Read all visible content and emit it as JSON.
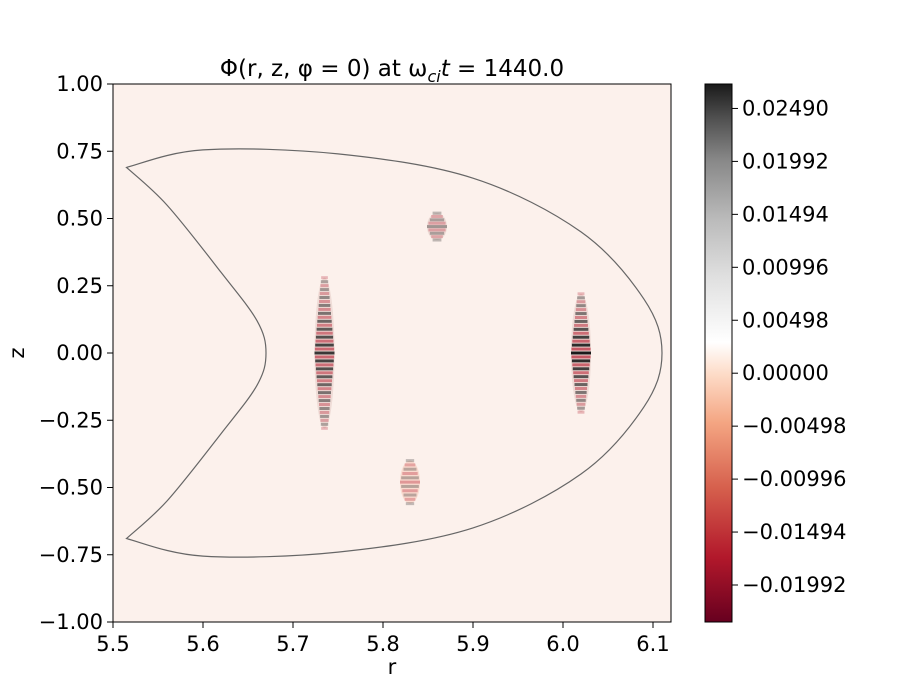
{
  "chart_data": {
    "type": "heatmap",
    "title": "Φ(r, z, φ = 0) at ω",
    "title_sub": "ci",
    "title_var": "t",
    "title_rest": " = 1440.0",
    "xlabel": "r",
    "ylabel": "z",
    "xlim": [
      5.5,
      6.12
    ],
    "ylim": [
      -1.0,
      1.0
    ],
    "x_ticks": [
      5.5,
      5.6,
      5.7,
      5.8,
      5.9,
      6.0,
      6.1
    ],
    "x_tick_labels": [
      "5.5",
      "5.6",
      "5.7",
      "5.8",
      "5.9",
      "6.0",
      "6.1"
    ],
    "y_ticks": [
      1.0,
      0.75,
      0.5,
      0.25,
      0.0,
      -0.25,
      -0.5,
      -0.75,
      -1.0
    ],
    "y_tick_labels": [
      "1.00",
      "0.75",
      "0.50",
      "0.25",
      "0.00",
      "−0.25",
      "−0.50",
      "−0.75",
      "−1.00"
    ],
    "colormap": "RdGy",
    "colorbar": {
      "vmin": -0.0234,
      "vmax": 0.0272,
      "ticks": [
        0.0249,
        0.01992,
        0.01494,
        0.00996,
        0.00498,
        0.0,
        -0.00498,
        -0.00996,
        -0.01494,
        -0.01992
      ],
      "tick_labels": [
        "0.02490",
        "0.01992",
        "0.01494",
        "0.00996",
        "0.00498",
        "0.00000",
        "−0.00498",
        "−0.00996",
        "−0.01494",
        "−0.01992"
      ]
    },
    "background_color": "#fcf1ec",
    "boundary": {
      "description": "crescent-shaped plasma boundary",
      "outer_r": [
        5.515,
        5.6,
        5.75,
        5.9,
        6.02,
        6.09,
        6.11,
        6.09,
        6.02,
        5.9,
        5.75,
        5.6,
        5.515
      ],
      "outer_z": [
        0.69,
        0.755,
        0.74,
        0.65,
        0.45,
        0.2,
        0.0,
        -0.2,
        -0.45,
        -0.65,
        -0.74,
        -0.755,
        -0.69
      ],
      "inner_r": [
        5.515,
        5.56,
        5.62,
        5.66,
        5.67,
        5.66,
        5.62,
        5.56,
        5.515
      ],
      "inner_z": [
        0.69,
        0.55,
        0.3,
        0.12,
        0.0,
        -0.12,
        -0.3,
        -0.55,
        -0.69
      ],
      "color": "#666666"
    },
    "features": [
      {
        "r": 5.735,
        "z": 0.0,
        "z_extent": 0.28,
        "amplitude": 0.02,
        "label": ""
      },
      {
        "r": 6.02,
        "z": 0.0,
        "z_extent": 0.22,
        "amplitude": 0.025,
        "label": ""
      },
      {
        "r": 5.86,
        "z": 0.47,
        "z_extent": 0.05,
        "amplitude": 0.004,
        "label": ""
      },
      {
        "r": 5.83,
        "z": -0.48,
        "z_extent": 0.08,
        "amplitude": -0.003,
        "label": ""
      }
    ]
  }
}
